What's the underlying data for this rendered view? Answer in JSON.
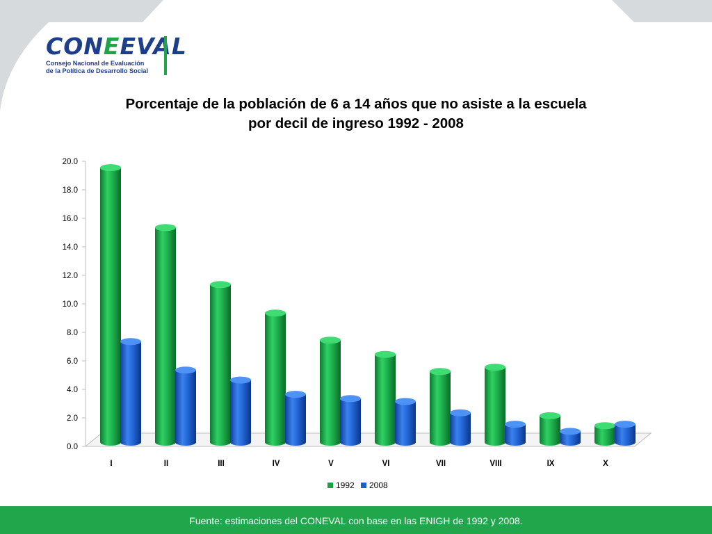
{
  "colors": {
    "background": "#d6dadd",
    "card": "#ffffff",
    "brand_blue": "#1d3e8a",
    "brand_green": "#1ea54a",
    "footer_green": "#22a64b",
    "series_1992": "#19a146",
    "series_2008": "#1c5fce"
  },
  "logo": {
    "word_part1": "CON",
    "word_part2": "EVAL",
    "letter_highlight": "E",
    "subtitle_line1": "Consejo Nacional de Evaluación",
    "subtitle_line2": "de la Política de Desarrollo Social"
  },
  "chart_data": {
    "type": "bar",
    "title_line1": "Porcentaje de la población de 6 a 14 años que no asiste a la escuela",
    "title_line2": "por decil de ingreso 1992 - 2008",
    "categories": [
      "I",
      "II",
      "III",
      "IV",
      "V",
      "VI",
      "VII",
      "VIII",
      "IX",
      "X"
    ],
    "series": [
      {
        "name": "1992",
        "values": [
          19.7,
          15.5,
          11.5,
          9.5,
          7.6,
          6.6,
          5.4,
          5.7,
          2.3,
          1.6
        ]
      },
      {
        "name": "2008",
        "values": [
          7.5,
          5.5,
          4.8,
          3.8,
          3.5,
          3.3,
          2.5,
          1.7,
          1.2,
          1.7
        ]
      }
    ],
    "yticks": [
      "0.0",
      "2.0",
      "4.0",
      "6.0",
      "8.0",
      "10.0",
      "12.0",
      "14.0",
      "16.0",
      "18.0",
      "20.0"
    ],
    "ylim": [
      0,
      20
    ],
    "grid": false,
    "legend_position": "bottom"
  },
  "footer": {
    "source_text": "Fuente: estimaciones del CONEVAL con base en las ENIGH de 1992 y 2008."
  }
}
